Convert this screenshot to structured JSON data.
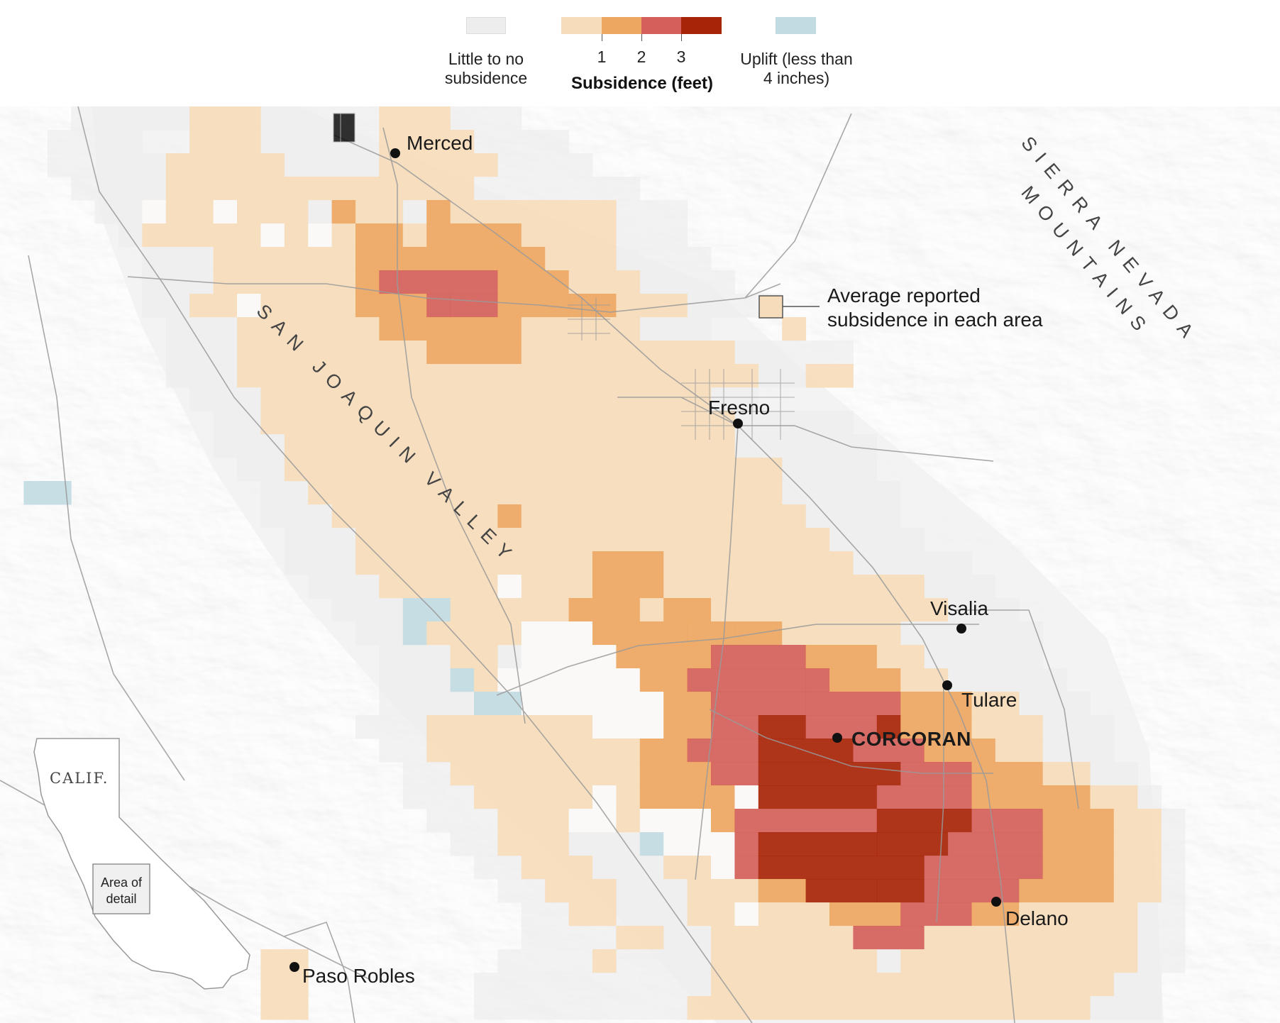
{
  "legend": {
    "none_label_line1": "Little to no",
    "none_label_line2": "subsidence",
    "ticks": [
      "1",
      "2",
      "3"
    ],
    "title": "Subsidence (feet)",
    "uplift_label_line1": "Uplift (less than",
    "uplift_label_line2": "4 inches)",
    "colors": {
      "none": "#ededed",
      "lt1": "#f6dcbb",
      "1to2": "#eea761",
      "2to3": "#d5605a",
      "gt3": "#a82408",
      "uplift": "#c1dbe2"
    }
  },
  "map": {
    "cities": [
      {
        "name": "Merced"
      },
      {
        "name": "Fresno"
      },
      {
        "name": "Visalia"
      },
      {
        "name": "Tulare"
      },
      {
        "name": "CORCORAN"
      },
      {
        "name": "Delano"
      },
      {
        "name": "Paso Robles"
      }
    ],
    "regions": {
      "valley": "SAN JOAQUIN VALLEY",
      "mountains_line1": "SIERRA NEVADA",
      "mountains_line2": "MOUNTAINS"
    },
    "annotation_line1": "Average reported",
    "annotation_line2": "subsidence in each area",
    "inset": {
      "state": "CALIF.",
      "box_line1": "Area of",
      "box_line2": "detail"
    }
  }
}
